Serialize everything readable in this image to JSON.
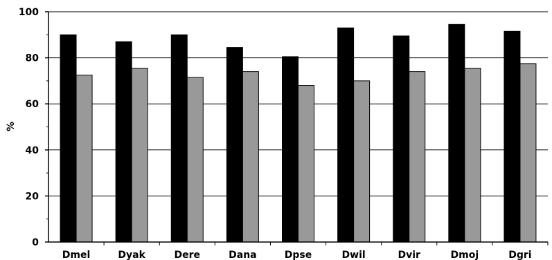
{
  "chart_data": {
    "type": "bar",
    "title": "",
    "xlabel": "",
    "ylabel": "%",
    "ylim": [
      0,
      100
    ],
    "yticks": [
      0,
      20,
      40,
      60,
      80,
      100
    ],
    "grid": true,
    "categories": [
      "Dmel",
      "Dyak",
      "Dere",
      "Dana",
      "Dpse",
      "Dwil",
      "Dvir",
      "Dmoj",
      "Dgri"
    ],
    "series": [
      {
        "color": "#000000",
        "values": [
          90,
          87,
          90,
          84.5,
          80.5,
          93,
          89.5,
          94.5,
          91.5
        ]
      },
      {
        "color": "#999999",
        "values": [
          72.5,
          75.5,
          71.5,
          74,
          68,
          70,
          74,
          75.5,
          77.5
        ]
      }
    ]
  }
}
